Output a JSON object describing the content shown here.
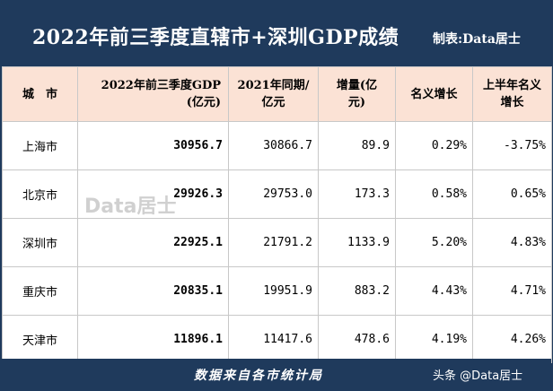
{
  "title": "2022年前三季度直辖市+深圳GDP成绩",
  "maker": "制表:Data居士",
  "columns": [
    "城　市",
    "2022年前三季度GDP\n(亿元)",
    "2021年同期/\n亿元",
    "增量(亿\n元)",
    "名义增长",
    "上半年名义\n增长"
  ],
  "rows": [
    {
      "city": "上海市",
      "gdp2022": "30956.7",
      "gdp2021": "30866.7",
      "increase": "89.9",
      "growth": "0.29%",
      "h1_growth": "-3.75%"
    },
    {
      "city": "北京市",
      "gdp2022": "29926.3",
      "gdp2021": "29753.0",
      "increase": "173.3",
      "growth": "0.58%",
      "h1_growth": "0.65%"
    },
    {
      "city": "深圳市",
      "gdp2022": "22925.1",
      "gdp2021": "21791.2",
      "increase": "1133.9",
      "growth": "5.20%",
      "h1_growth": "4.83%"
    },
    {
      "city": "重庆市",
      "gdp2022": "20835.1",
      "gdp2021": "19951.9",
      "increase": "883.2",
      "growth": "4.43%",
      "h1_growth": "4.71%"
    },
    {
      "city": "天津市",
      "gdp2022": "11896.1",
      "gdp2021": "11417.6",
      "increase": "478.6",
      "growth": "4.19%",
      "h1_growth": "4.26%"
    }
  ],
  "watermark": "Data居士",
  "footer": "数据来自各市统计局",
  "footer_brand": "头条 @Data居士",
  "colors": {
    "header_bg": "#1f3a5c",
    "col_header_bg": "#fbe2d5",
    "negative": "#e02020"
  }
}
